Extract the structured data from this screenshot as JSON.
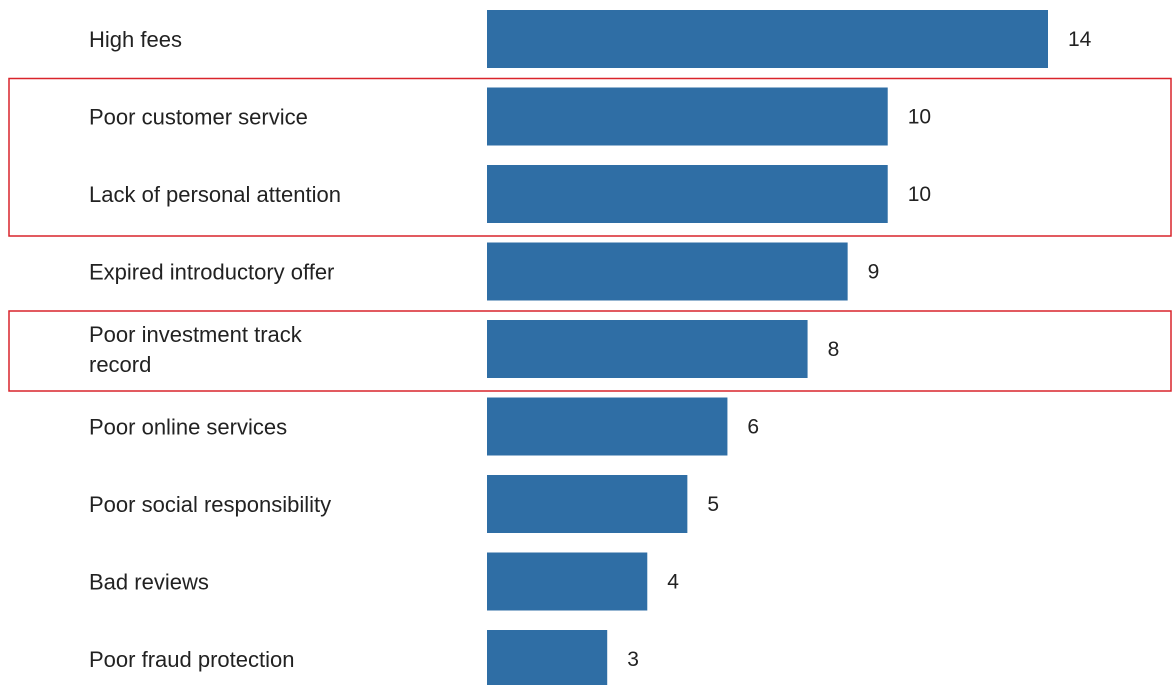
{
  "chart_data": {
    "type": "bar",
    "orientation": "horizontal",
    "categories": [
      "High fees",
      "Poor customer service",
      "Lack of personal attention",
      "Expired introductory offer",
      "Poor investment track record",
      "Poor online services",
      "Poor social responsibility",
      "Bad reviews",
      "Poor fraud protection"
    ],
    "values": [
      14,
      10,
      10,
      9,
      8,
      6,
      5,
      4,
      3
    ],
    "data_labels": [
      "14",
      "10",
      "10",
      "9",
      "8",
      "6",
      "5",
      "4",
      "3"
    ],
    "xlim": [
      0,
      14
    ],
    "grid": false,
    "legend": "none",
    "highlighted_categories": [
      [
        "Poor customer service",
        "Lack of personal attention"
      ],
      [
        "Poor investment track record"
      ]
    ]
  },
  "colors": {
    "bar": "#2f6ea5",
    "highlight": "#d9242b",
    "text": "#222222"
  }
}
